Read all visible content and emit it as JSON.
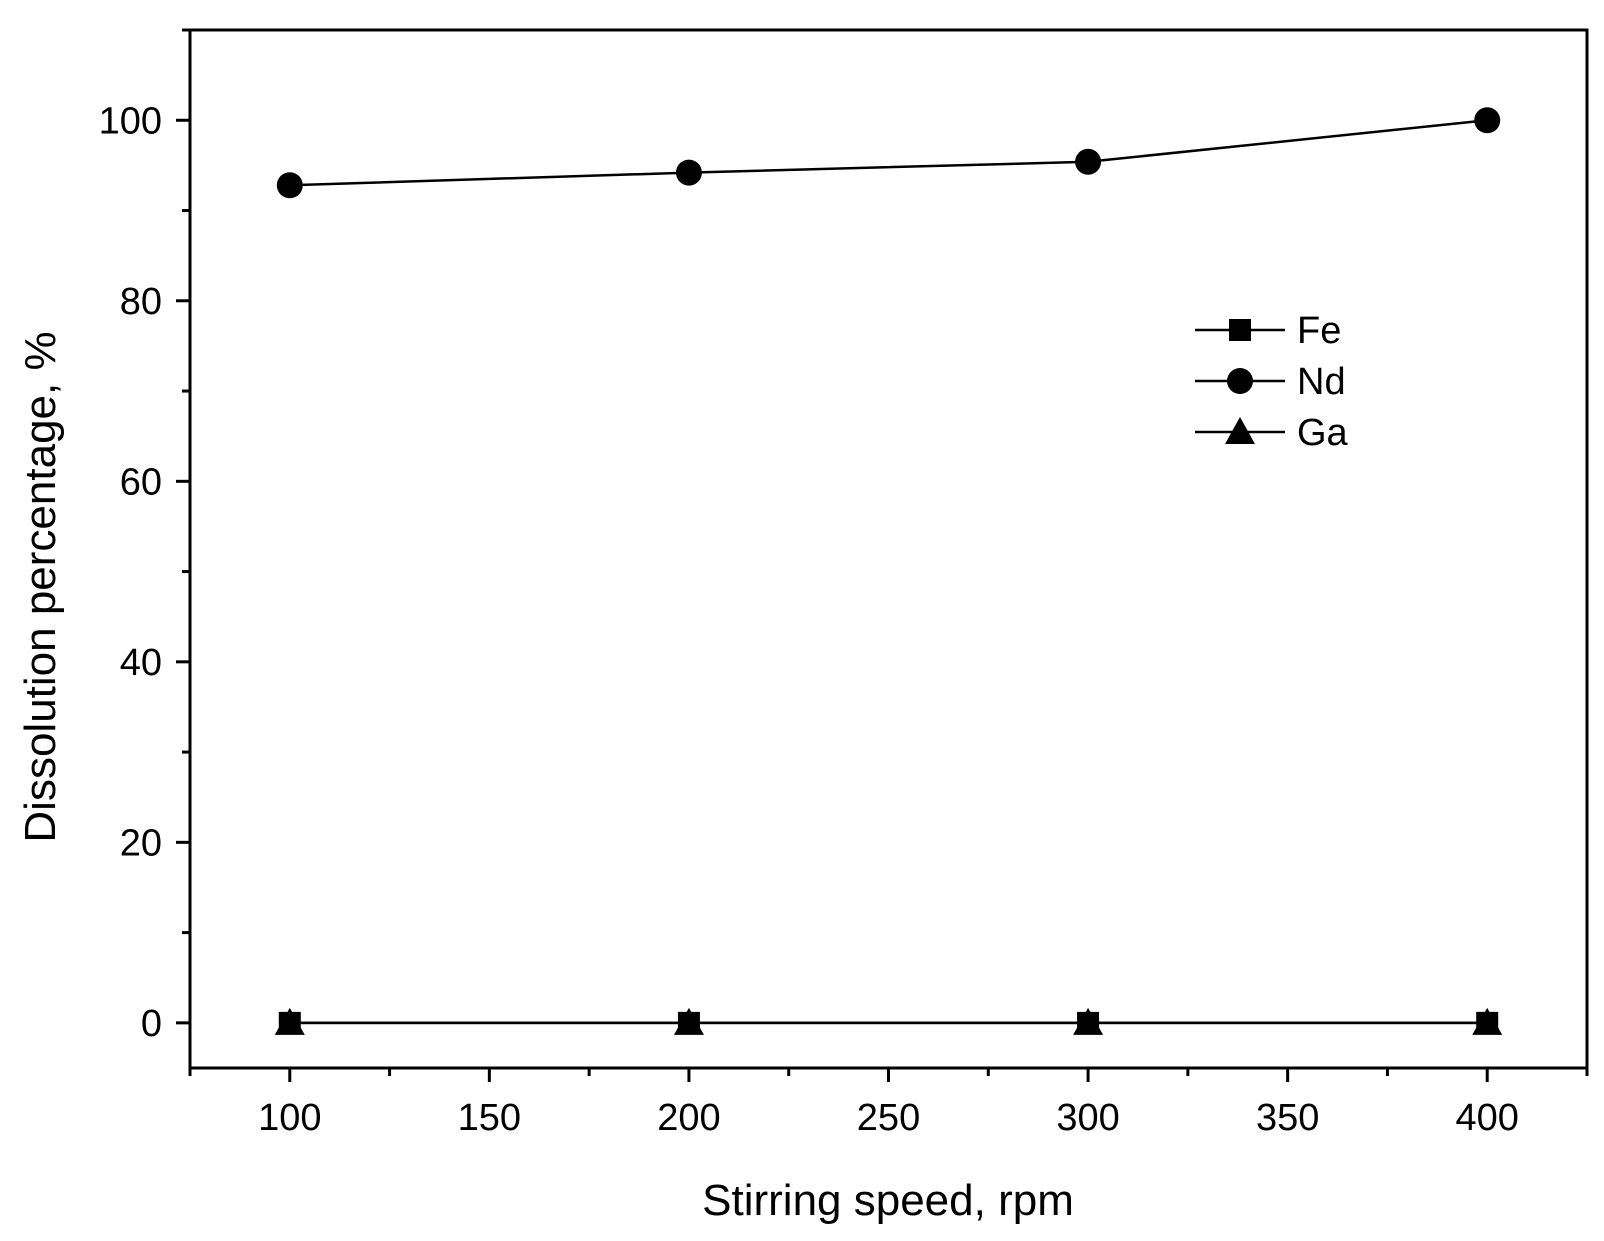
{
  "chart_data": {
    "type": "line",
    "title": "",
    "xlabel": "Stirring speed, rpm",
    "ylabel": "Dissolution percentage, %",
    "xlim": [
      75,
      425
    ],
    "ylim": [
      -5,
      110
    ],
    "x_ticks": [
      100,
      150,
      200,
      250,
      300,
      350,
      400
    ],
    "x_tick_labels": [
      "100",
      "150",
      "200",
      "250",
      "300",
      "350",
      "400"
    ],
    "x_minor_step": 25,
    "y_ticks": [
      0,
      20,
      40,
      60,
      80,
      100
    ],
    "y_tick_labels": [
      "0",
      "20",
      "40",
      "60",
      "80",
      "100"
    ],
    "y_minor_step": 10,
    "grid": false,
    "legend_position": "upper-right",
    "x": [
      100,
      200,
      300,
      400
    ],
    "series": [
      {
        "name": "Fe",
        "marker": "square",
        "values": [
          0,
          0,
          0,
          0
        ]
      },
      {
        "name": "Nd",
        "marker": "circle",
        "values": [
          92.8,
          94.2,
          95.4,
          100
        ]
      },
      {
        "name": "Ga",
        "marker": "triangle",
        "values": [
          0,
          0,
          0,
          0
        ]
      }
    ],
    "colors": {
      "line": "#000000",
      "marker": "#000000",
      "background": "#ffffff"
    }
  }
}
